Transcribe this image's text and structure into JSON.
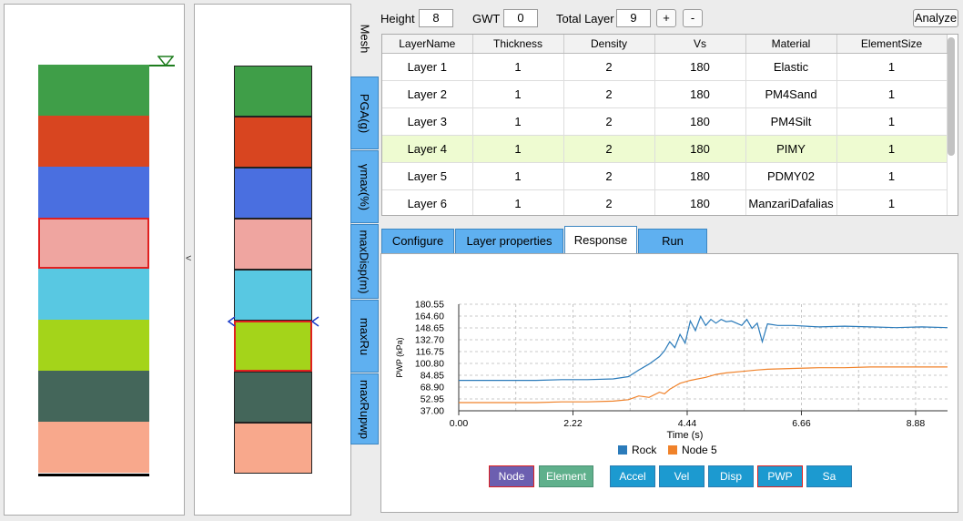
{
  "toolbar": {
    "height_label": "Height",
    "height_value": "8",
    "gwt_label": "GWT",
    "gwt_value": "0",
    "total_layer_label": "Total Layer",
    "total_layer_value": "9",
    "add_label": "+",
    "remove_label": "-",
    "analyze_label": "Analyze"
  },
  "soil_colors": [
    "#3f9e48",
    "#d84520",
    "#4a6fe0",
    "#efa5a0",
    "#58c8e2",
    "#a4d41a",
    "#44665a",
    "#f8a88c"
  ],
  "selected_layer_index": 5,
  "collapse_label": "<",
  "vertical_tabs": [
    "Mesh",
    "PGA(g)",
    "γmax(%)",
    "maxDisp(m)",
    "maxRu",
    "maxRupwp"
  ],
  "table": {
    "columns": [
      "LayerName",
      "Thickness",
      "Density",
      "Vs",
      "Material",
      "ElementSize"
    ],
    "rows": [
      [
        "Layer 1",
        "1",
        "2",
        "180",
        "Elastic",
        "1"
      ],
      [
        "Layer 2",
        "1",
        "2",
        "180",
        "PM4Sand",
        "1"
      ],
      [
        "Layer 3",
        "1",
        "2",
        "180",
        "PM4Silt",
        "1"
      ],
      [
        "Layer 4",
        "1",
        "2",
        "180",
        "PIMY",
        "1"
      ],
      [
        "Layer 5",
        "1",
        "2",
        "180",
        "PDMY02",
        "1"
      ],
      [
        "Layer 6",
        "1",
        "2",
        "180",
        "ManzariDafalias",
        "1"
      ]
    ],
    "highlighted_row": 3
  },
  "tabs": [
    "Configure",
    "Layer properties",
    "Response",
    "Run"
  ],
  "active_tab": "Response",
  "response_buttons": {
    "node": "Node",
    "element": "Element",
    "accel": "Accel",
    "vel": "Vel",
    "disp": "Disp",
    "pwp": "PWP",
    "sa": "Sa"
  },
  "chart_data": {
    "type": "line",
    "xlabel": "Time (s)",
    "ylabel": "PWP (kPa)",
    "xlim": [
      0,
      9.5
    ],
    "ylim": [
      37.0,
      180.55
    ],
    "x_ticks": [
      "0.00",
      "2.22",
      "4.44",
      "6.66",
      "8.88"
    ],
    "y_ticks": [
      "37.00",
      "52.95",
      "68.90",
      "84.85",
      "100.80",
      "116.75",
      "132.70",
      "148.65",
      "164.60",
      "180.55"
    ],
    "grid": true,
    "legend_position": "bottom",
    "series": [
      {
        "name": "Rock",
        "color": "#2b7bba",
        "x": [
          0,
          0.5,
          1,
          1.5,
          2,
          2.5,
          3,
          3.3,
          3.5,
          3.7,
          3.9,
          4.0,
          4.1,
          4.2,
          4.3,
          4.4,
          4.5,
          4.6,
          4.7,
          4.8,
          4.9,
          5.0,
          5.1,
          5.2,
          5.3,
          5.4,
          5.5,
          5.6,
          5.7,
          5.8,
          5.9,
          6.0,
          6.2,
          6.5,
          7.0,
          7.5,
          8.0,
          8.5,
          9.0,
          9.5
        ],
        "y": [
          78,
          78,
          78,
          78,
          79,
          79,
          80,
          83,
          92,
          100,
          110,
          118,
          130,
          122,
          140,
          128,
          158,
          145,
          164,
          152,
          160,
          155,
          160,
          157,
          158,
          155,
          152,
          160,
          148,
          155,
          130,
          154,
          152,
          152,
          150,
          151,
          150,
          149,
          150,
          149
        ]
      },
      {
        "name": "Node 5",
        "color": "#f0822a",
        "x": [
          0,
          0.5,
          1,
          1.5,
          2,
          2.5,
          3,
          3.3,
          3.5,
          3.7,
          3.9,
          4.0,
          4.1,
          4.2,
          4.3,
          4.5,
          4.8,
          5.0,
          5.2,
          5.5,
          5.8,
          6.0,
          6.5,
          7.0,
          7.5,
          8.0,
          8.5,
          9.0,
          9.5
        ],
        "y": [
          48,
          48,
          48,
          48,
          49,
          49,
          50,
          52,
          57,
          55,
          62,
          60,
          66,
          70,
          74,
          78,
          82,
          86,
          88,
          90,
          92,
          93,
          94,
          95,
          95,
          96,
          96,
          96,
          96
        ]
      }
    ]
  }
}
